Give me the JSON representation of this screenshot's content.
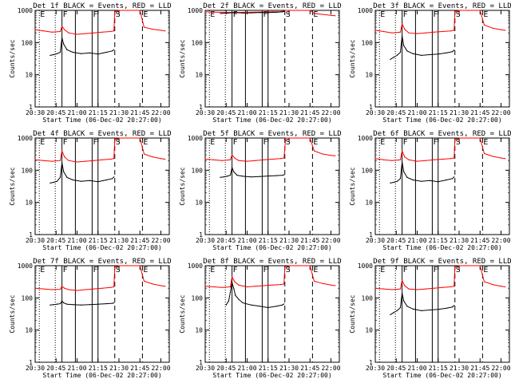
{
  "chart_data": {
    "type": "line",
    "layout": "3x3 grid of detector light curves",
    "colors": {
      "events": "#000000",
      "lld": "#ff0000",
      "axes": "#000000",
      "background": "#ffffff"
    },
    "x_range_hours": [
      20.5,
      22.1
    ],
    "y_range": [
      1,
      1000
    ],
    "y_scale": "log",
    "x_tick_labels": [
      "20:30",
      "20:45",
      "21:00",
      "21:15",
      "21:30",
      "21:45",
      "22:00"
    ],
    "x_tick_values_hours": [
      20.5,
      20.75,
      21.0,
      21.25,
      21.5,
      21.75,
      22.0
    ],
    "y_tick_labels": [
      "1",
      "10",
      "100",
      "1000"
    ],
    "y_tick_values": [
      1,
      10,
      100,
      1000
    ],
    "xlabel": "Start Time (06-Dec-02 20:27:00)",
    "ylabel": "Counts/sec",
    "marker_lines": [
      {
        "label": "E",
        "hours": 20.55,
        "style": "dotted"
      },
      {
        "label": "F",
        "hours": 20.82,
        "style": "solid"
      },
      {
        "label": "F",
        "hours": 21.18,
        "style": "solid"
      },
      {
        "label": "S",
        "hours": 21.45,
        "style": "dashed"
      },
      {
        "label": "E",
        "hours": 21.78,
        "style": "dashed"
      }
    ],
    "panels": [
      {
        "title": "Det 1f BLACK = Events, RED = LLD",
        "extra_lines": [
          {
            "hours": 20.74,
            "style": "dotted"
          },
          {
            "hours": 20.98,
            "style": "solid"
          },
          {
            "hours": 21.25,
            "style": "solid"
          }
        ],
        "events": {
          "x": [
            20.68,
            20.72,
            20.76,
            20.8,
            20.82,
            20.84,
            20.88,
            20.95,
            21.05,
            21.15,
            21.25,
            21.35,
            21.42,
            21.44
          ],
          "y": [
            40,
            42,
            45,
            50,
            140,
            90,
            60,
            50,
            45,
            48,
            44,
            50,
            55,
            60
          ]
        },
        "lld": {
          "x": [
            20.5,
            20.6,
            20.7,
            20.8,
            20.82,
            20.85,
            20.9,
            21.0,
            21.1,
            21.2,
            21.3,
            21.4,
            21.44,
            21.45,
            21.5,
            21.6,
            21.7,
            21.75,
            21.8,
            21.9,
            22.0,
            22.05
          ],
          "y": [
            250,
            230,
            210,
            220,
            320,
            250,
            200,
            180,
            190,
            200,
            210,
            220,
            230,
            900,
            1000,
            1000,
            1000,
            1000,
            300,
            260,
            240,
            230
          ]
        }
      },
      {
        "title": "Det 2f BLACK = Events, RED = LLD",
        "extra_lines": [
          {
            "hours": 20.74,
            "style": "dotted"
          },
          {
            "hours": 20.98,
            "style": "solid"
          },
          {
            "hours": 21.25,
            "style": "solid"
          }
        ],
        "events": {
          "x": [
            20.68,
            20.75,
            20.85,
            20.95,
            21.05,
            21.15,
            21.25,
            21.35,
            21.42,
            21.44
          ],
          "y": [
            800,
            820,
            850,
            830,
            840,
            860,
            850,
            870,
            900,
            920
          ]
        },
        "lld": {
          "x": [
            20.5,
            20.6,
            20.7,
            20.8,
            20.9,
            21.0,
            21.1,
            21.2,
            21.3,
            21.4,
            21.44,
            21.46,
            21.5,
            21.6,
            21.7,
            21.75,
            21.8,
            21.9,
            22.0,
            22.05
          ],
          "y": [
            900,
            880,
            870,
            860,
            860,
            870,
            880,
            890,
            900,
            910,
            950,
            1000,
            1000,
            1000,
            1000,
            1000,
            800,
            750,
            700,
            680
          ]
        }
      },
      {
        "title": "Det 3f BLACK = Events, RED = LLD",
        "extra_lines": [
          {
            "hours": 20.74,
            "style": "dotted"
          },
          {
            "hours": 20.98,
            "style": "solid"
          },
          {
            "hours": 21.25,
            "style": "solid"
          }
        ],
        "events": {
          "x": [
            20.68,
            20.72,
            20.76,
            20.8,
            20.82,
            20.84,
            20.88,
            20.95,
            21.05,
            21.15,
            21.25,
            21.35,
            21.42,
            21.44
          ],
          "y": [
            30,
            35,
            40,
            50,
            160,
            80,
            55,
            45,
            40,
            42,
            44,
            48,
            52,
            58
          ]
        },
        "lld": {
          "x": [
            20.5,
            20.6,
            20.7,
            20.8,
            20.82,
            20.85,
            20.9,
            21.0,
            21.1,
            21.2,
            21.3,
            21.4,
            21.44,
            21.45,
            21.5,
            21.6,
            21.7,
            21.75,
            21.8,
            21.9,
            22.0,
            22.05
          ],
          "y": [
            240,
            220,
            200,
            210,
            380,
            260,
            200,
            190,
            200,
            210,
            220,
            230,
            240,
            900,
            1000,
            1000,
            1000,
            1000,
            350,
            280,
            250,
            240
          ]
        }
      },
      {
        "title": "Det 4f BLACK = Events, RED = LLD",
        "extra_lines": [
          {
            "hours": 20.74,
            "style": "dotted"
          },
          {
            "hours": 20.98,
            "style": "solid"
          },
          {
            "hours": 21.25,
            "style": "solid"
          }
        ],
        "events": {
          "x": [
            20.68,
            20.72,
            20.76,
            20.8,
            20.82,
            20.84,
            20.88,
            20.95,
            21.05,
            21.15,
            21.25,
            21.35,
            21.42,
            21.44
          ],
          "y": [
            40,
            42,
            45,
            60,
            170,
            90,
            60,
            50,
            45,
            48,
            44,
            50,
            55,
            62
          ]
        },
        "lld": {
          "x": [
            20.5,
            20.6,
            20.7,
            20.8,
            20.82,
            20.85,
            20.9,
            21.0,
            21.1,
            21.2,
            21.3,
            21.4,
            21.44,
            21.45,
            21.5,
            21.6,
            21.7,
            21.75,
            21.8,
            21.9,
            22.0,
            22.05
          ],
          "y": [
            210,
            200,
            190,
            200,
            400,
            260,
            200,
            180,
            190,
            200,
            210,
            220,
            230,
            900,
            1000,
            1000,
            1000,
            1000,
            320,
            260,
            230,
            220
          ]
        }
      },
      {
        "title": "Det 5f BLACK = Events, RED = LLD",
        "extra_lines": [
          {
            "hours": 20.74,
            "style": "dotted"
          },
          {
            "hours": 20.98,
            "style": "solid"
          },
          {
            "hours": 21.25,
            "style": "solid"
          }
        ],
        "events": {
          "x": [
            20.68,
            20.72,
            20.76,
            20.8,
            20.82,
            20.84,
            20.88,
            20.95,
            21.05,
            21.15,
            21.25,
            21.35,
            21.42,
            21.44
          ],
          "y": [
            60,
            62,
            65,
            70,
            120,
            90,
            70,
            65,
            62,
            64,
            66,
            68,
            70,
            72
          ]
        },
        "lld": {
          "x": [
            20.5,
            20.6,
            20.7,
            20.8,
            20.82,
            20.85,
            20.9,
            21.0,
            21.1,
            21.2,
            21.3,
            21.4,
            21.44,
            21.46,
            21.5,
            21.6,
            21.7,
            21.75,
            21.8,
            21.9,
            22.0,
            22.05
          ],
          "y": [
            220,
            210,
            200,
            210,
            300,
            240,
            200,
            190,
            200,
            210,
            220,
            230,
            240,
            1000,
            1000,
            1000,
            1000,
            1000,
            400,
            320,
            290,
            280
          ]
        }
      },
      {
        "title": "Det 6f BLACK = Events, RED = LLD",
        "extra_lines": [
          {
            "hours": 20.74,
            "style": "dotted"
          },
          {
            "hours": 20.98,
            "style": "solid"
          },
          {
            "hours": 21.25,
            "style": "solid"
          }
        ],
        "events": {
          "x": [
            20.68,
            20.72,
            20.76,
            20.8,
            20.82,
            20.84,
            20.88,
            20.95,
            21.05,
            21.15,
            21.25,
            21.35,
            21.42,
            21.44
          ],
          "y": [
            40,
            42,
            45,
            55,
            180,
            90,
            60,
            50,
            45,
            48,
            44,
            50,
            55,
            62
          ]
        },
        "lld": {
          "x": [
            20.5,
            20.6,
            20.7,
            20.8,
            20.82,
            20.85,
            20.9,
            21.0,
            21.1,
            21.2,
            21.3,
            21.4,
            21.44,
            21.45,
            21.5,
            21.6,
            21.7,
            21.75,
            21.8,
            21.9,
            22.0,
            22.05
          ],
          "y": [
            230,
            210,
            200,
            210,
            400,
            260,
            210,
            190,
            200,
            210,
            220,
            230,
            240,
            900,
            1000,
            1000,
            1000,
            1000,
            330,
            270,
            240,
            230
          ]
        }
      },
      {
        "title": "Det 7f BLACK = Events, RED = LLD",
        "extra_lines": [
          {
            "hours": 20.74,
            "style": "dotted"
          },
          {
            "hours": 20.98,
            "style": "solid"
          },
          {
            "hours": 21.25,
            "style": "solid"
          }
        ],
        "events": {
          "x": [
            20.68,
            20.72,
            20.76,
            20.8,
            20.82,
            20.84,
            20.88,
            20.95,
            21.05,
            21.15,
            21.25,
            21.35,
            21.42,
            21.44
          ],
          "y": [
            60,
            62,
            64,
            66,
            80,
            70,
            64,
            62,
            60,
            62,
            64,
            66,
            68,
            70
          ]
        },
        "lld": {
          "x": [
            20.5,
            20.6,
            20.7,
            20.8,
            20.82,
            20.85,
            20.9,
            21.0,
            21.1,
            21.2,
            21.3,
            21.4,
            21.44,
            21.45,
            21.5,
            21.6,
            21.7,
            21.75,
            21.8,
            21.9,
            22.0,
            22.05
          ],
          "y": [
            200,
            190,
            180,
            185,
            230,
            200,
            180,
            170,
            180,
            190,
            200,
            210,
            220,
            900,
            1000,
            1000,
            1000,
            1000,
            330,
            270,
            240,
            230
          ]
        }
      },
      {
        "title": "Det 8f BLACK = Events, RED = LLD",
        "extra_lines": [
          {
            "hours": 20.74,
            "style": "dotted"
          },
          {
            "hours": 20.98,
            "style": "solid"
          },
          {
            "hours": 21.25,
            "style": "solid"
          }
        ],
        "events": {
          "x": [
            20.75,
            20.78,
            20.8,
            20.82,
            20.84,
            20.86,
            20.9,
            20.95,
            21.05,
            21.15,
            21.25,
            21.35,
            21.42,
            21.44
          ],
          "y": [
            60,
            80,
            150,
            300,
            200,
            120,
            90,
            70,
            60,
            55,
            50,
            55,
            60,
            65
          ]
        },
        "lld": {
          "x": [
            20.5,
            20.6,
            20.7,
            20.8,
            20.82,
            20.85,
            20.9,
            21.0,
            21.1,
            21.2,
            21.3,
            21.4,
            21.44,
            21.45,
            21.5,
            21.6,
            21.7,
            21.75,
            21.8,
            21.9,
            22.0,
            22.05
          ],
          "y": [
            230,
            220,
            210,
            220,
            450,
            320,
            250,
            220,
            230,
            240,
            250,
            260,
            270,
            900,
            1000,
            1000,
            1000,
            1000,
            330,
            280,
            250,
            240
          ]
        }
      },
      {
        "title": "Det 9f BLACK = Events, RED = LLD",
        "extra_lines": [
          {
            "hours": 20.74,
            "style": "dotted"
          },
          {
            "hours": 20.98,
            "style": "solid"
          },
          {
            "hours": 21.25,
            "style": "solid"
          }
        ],
        "events": {
          "x": [
            20.68,
            20.72,
            20.76,
            20.8,
            20.82,
            20.84,
            20.88,
            20.95,
            21.05,
            21.15,
            21.25,
            21.35,
            21.42,
            21.44
          ],
          "y": [
            30,
            35,
            40,
            50,
            140,
            80,
            55,
            45,
            40,
            42,
            44,
            48,
            52,
            58
          ]
        },
        "lld": {
          "x": [
            20.5,
            20.6,
            20.7,
            20.8,
            20.82,
            20.85,
            20.9,
            21.0,
            21.1,
            21.2,
            21.3,
            21.4,
            21.44,
            21.45,
            21.5,
            21.6,
            21.7,
            21.75,
            21.8,
            21.9,
            22.0,
            22.05
          ],
          "y": [
            200,
            190,
            180,
            190,
            350,
            240,
            190,
            180,
            190,
            200,
            210,
            220,
            230,
            900,
            1000,
            1000,
            1000,
            1000,
            320,
            260,
            230,
            220
          ]
        }
      }
    ]
  }
}
